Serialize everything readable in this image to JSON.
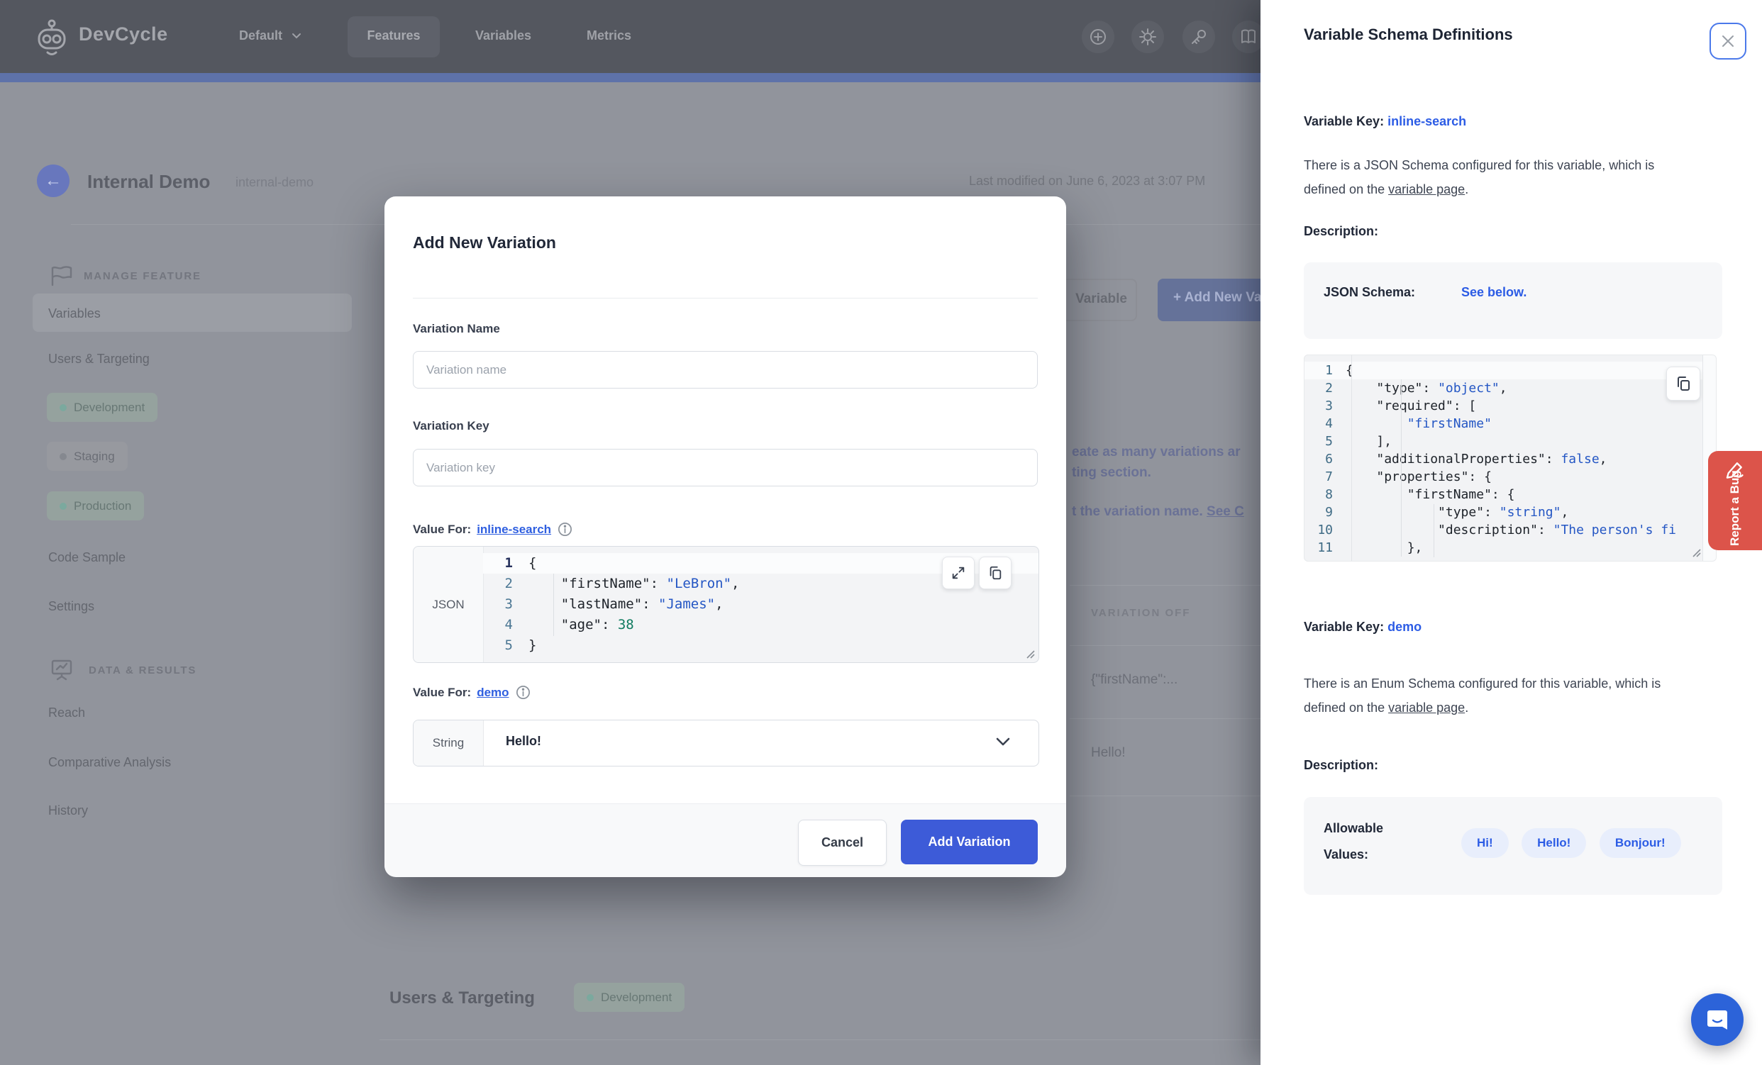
{
  "colors": {
    "accent_blue": "#3d5bd8",
    "link_blue": "#2c5ce5",
    "navbar_bg": "#54575f",
    "nav_strip": "#5e72a9",
    "danger_red": "#dc544a",
    "chat_blue": "#2c63d9",
    "env_green_dot": "#7ba99e"
  },
  "nav": {
    "brand": "DevCycle",
    "project_selector": "Default",
    "tabs": [
      {
        "label": "Features",
        "active": true
      },
      {
        "label": "Variables",
        "active": false
      },
      {
        "label": "Metrics",
        "active": false
      }
    ]
  },
  "feature_header": {
    "title": "Internal Demo",
    "key": "internal-demo",
    "last_modified": "Last modified on June 6, 2023 at 3:07 PM"
  },
  "sidebar": {
    "manage_feature": {
      "label": "MANAGE FEATURE"
    },
    "items": [
      {
        "label": "Variables",
        "active": true
      },
      {
        "label": "Users & Targeting",
        "active": false
      }
    ],
    "environments": [
      {
        "label": "Development",
        "tone": "green"
      },
      {
        "label": "Staging",
        "tone": "gray"
      },
      {
        "label": "Production",
        "tone": "green"
      }
    ],
    "items2": [
      {
        "label": "Code Sample"
      },
      {
        "label": "Settings"
      }
    ],
    "data_results": {
      "label": "DATA & RESULTS"
    },
    "data_items": [
      {
        "label": "Reach"
      },
      {
        "label": "Comparative Analysis"
      },
      {
        "label": "History"
      }
    ]
  },
  "background_page": {
    "ghost_button_label": "Variable",
    "add_new_button_label": "+  Add New Variable",
    "banner_line1": "eate as many variations ar",
    "banner_line2": "ting section.",
    "banner_line3_pre": "t the variation name. ",
    "banner_line3_link": "See C",
    "table": {
      "column_header": "VARIATION OFF",
      "rows": [
        "{\"firstName\":...",
        "Hello!"
      ]
    },
    "section": {
      "title": "Users & Targeting",
      "env_pill": "Development"
    }
  },
  "modal": {
    "title": "Add New Variation",
    "variation_name": {
      "label": "Variation Name",
      "placeholder": "Variation name",
      "value": ""
    },
    "variation_key": {
      "label": "Variation Key",
      "placeholder": "Variation key",
      "value": ""
    },
    "value_for_json": {
      "label": "Value For:",
      "variable_link": "inline-search",
      "type_badge": "JSON",
      "lines": [
        "{",
        "    \"firstName\": \"LeBron\",",
        "    \"lastName\": \"James\",",
        "    \"age\": 38",
        "}"
      ]
    },
    "value_for_string": {
      "label": "Value For:",
      "variable_link": "demo",
      "type_badge": "String",
      "selected_value": "Hello!"
    },
    "cancel_label": "Cancel",
    "submit_label": "Add Variation"
  },
  "drawer": {
    "title": "Variable Schema Definitions",
    "section_json": {
      "key_label": "Variable Key:",
      "key_value": "inline-search",
      "para_pre": "There is a JSON Schema configured for this variable, which is defined on the ",
      "para_link": "variable page",
      "para_post": ".",
      "description_label": "Description:",
      "schema_label": "JSON Schema:",
      "schema_link": "See below.",
      "code_lines": [
        "{",
        "    \"type\": \"object\",",
        "    \"required\": [",
        "        \"firstName\"",
        "    ],",
        "    \"additionalProperties\": false,",
        "    \"properties\": {",
        "        \"firstName\": {",
        "            \"type\": \"string\",",
        "            \"description\": \"The person's fi",
        "        },"
      ]
    },
    "section_enum": {
      "key_label": "Variable Key:",
      "key_value": "demo",
      "para_pre": "There is an Enum Schema configured for this variable, which is defined on the ",
      "para_link": "variable page",
      "para_post": ".",
      "description_label": "Description:",
      "allowable_label": "Allowable Values:",
      "values": [
        "Hi!",
        "Hello!",
        "Bonjour!"
      ]
    },
    "report_bug_label": "Report a Bug"
  }
}
